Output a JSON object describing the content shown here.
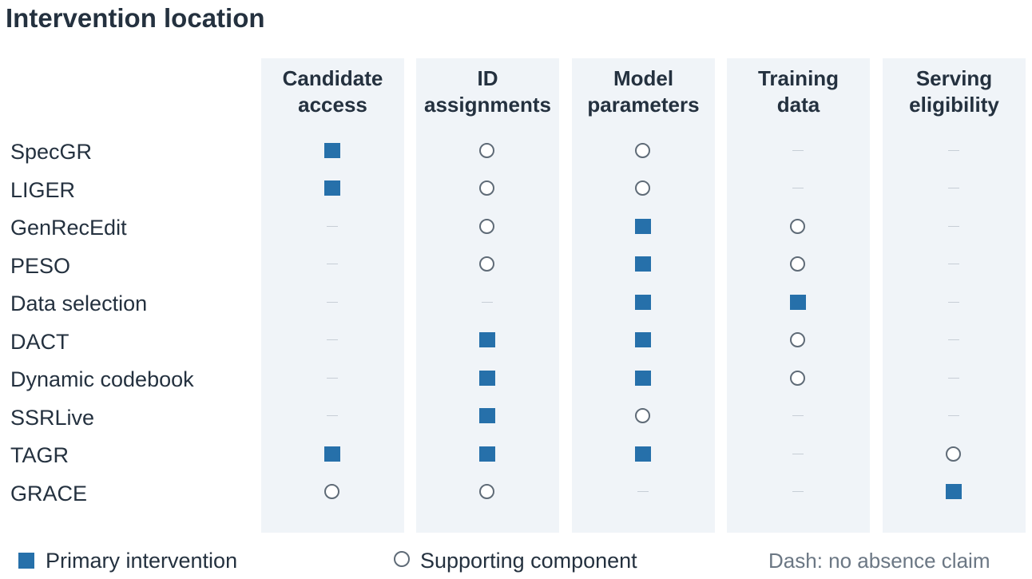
{
  "title": "Intervention location",
  "columns": [
    {
      "line1": "Candidate",
      "line2": "access"
    },
    {
      "line1": "ID",
      "line2": "assignments"
    },
    {
      "line1": "Model",
      "line2": "parameters"
    },
    {
      "line1": "Training",
      "line2": "data"
    },
    {
      "line1": "Serving",
      "line2": "eligibility"
    }
  ],
  "rows": [
    {
      "label": "SpecGR",
      "marks": [
        "primary",
        "supporting",
        "supporting",
        "none",
        "none"
      ]
    },
    {
      "label": "LIGER",
      "marks": [
        "primary",
        "supporting",
        "supporting",
        "none",
        "none"
      ]
    },
    {
      "label": "GenRecEdit",
      "marks": [
        "none",
        "supporting",
        "primary",
        "supporting",
        "none"
      ]
    },
    {
      "label": "PESO",
      "marks": [
        "none",
        "supporting",
        "primary",
        "supporting",
        "none"
      ]
    },
    {
      "label": "Data selection",
      "marks": [
        "none",
        "none",
        "primary",
        "primary",
        "none"
      ]
    },
    {
      "label": "DACT",
      "marks": [
        "none",
        "primary",
        "primary",
        "supporting",
        "none"
      ]
    },
    {
      "label": "Dynamic codebook",
      "marks": [
        "none",
        "primary",
        "primary",
        "supporting",
        "none"
      ]
    },
    {
      "label": "SSRLive",
      "marks": [
        "none",
        "primary",
        "supporting",
        "none",
        "none"
      ]
    },
    {
      "label": "TAGR",
      "marks": [
        "primary",
        "primary",
        "primary",
        "none",
        "supporting"
      ]
    },
    {
      "label": "GRACE",
      "marks": [
        "supporting",
        "supporting",
        "none",
        "none",
        "primary"
      ]
    }
  ],
  "legend": {
    "primary": "Primary intervention",
    "supporting": "Supporting component",
    "note": "Dash: no absence claim"
  },
  "colors": {
    "primary": "#2670aa",
    "supporting_stroke": "#5f6b77",
    "column_background": "#f0f4f8"
  }
}
